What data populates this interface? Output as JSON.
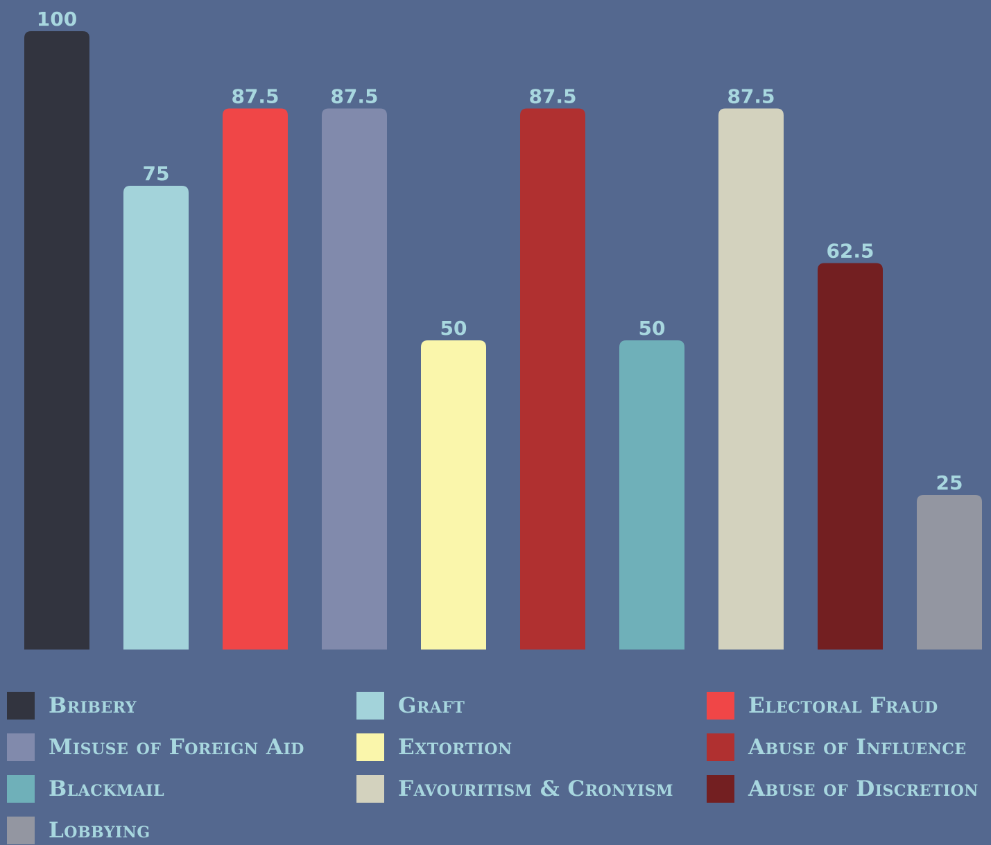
{
  "chart_data": {
    "type": "bar",
    "categories": [
      "Bribery",
      "Graft",
      "Electoral Fraud",
      "Misuse of Foreign Aid",
      "Extortion",
      "Abuse of Influence",
      "Blackmail",
      "Favouritism & Cronyism",
      "Abuse of Discretion",
      "Lobbying"
    ],
    "values": [
      100,
      75,
      87.5,
      87.5,
      50,
      87.5,
      50,
      87.5,
      62.5,
      25
    ],
    "value_labels": [
      "100",
      "75",
      "87.5",
      "87.5",
      "50",
      "87.5",
      "50",
      "87.5",
      "62.5",
      "25"
    ],
    "colors": [
      "#32343f",
      "#a3d3da",
      "#f04647",
      "#818aac",
      "#faf6ab",
      "#b03030",
      "#6fb0b9",
      "#d3d2be",
      "#731f21",
      "#9396a1"
    ],
    "ylim": [
      0,
      100
    ],
    "grid": false,
    "legend": "bottom",
    "title": "",
    "xlabel": "",
    "ylabel": ""
  }
}
